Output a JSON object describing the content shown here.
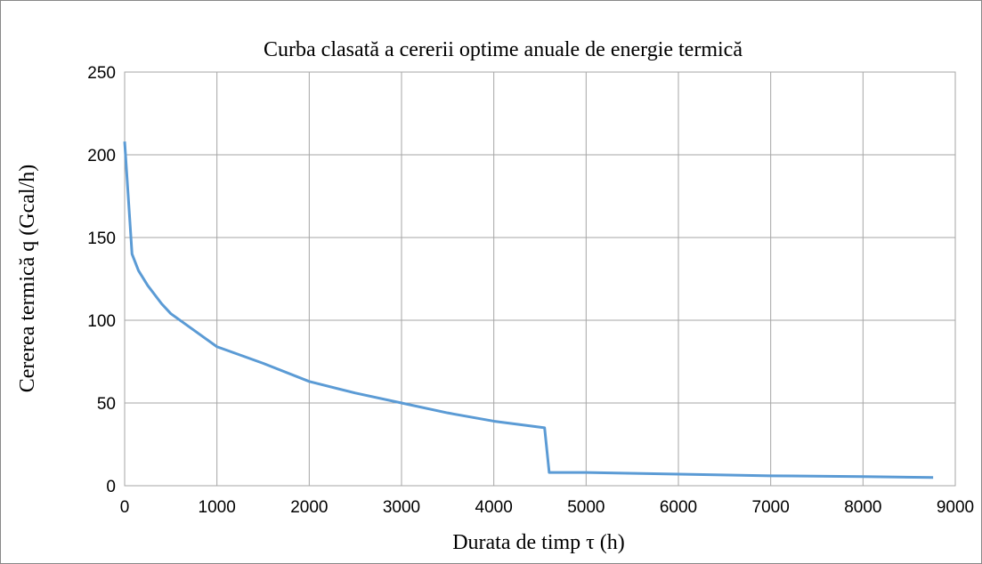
{
  "chart_data": {
    "type": "line",
    "title": "Curba clasată a cererii optime anuale de energie termică",
    "xlabel": "Durata de timp τ (h)",
    "ylabel": "Cererea termică q (Gcal/h)",
    "x": [
      0,
      80,
      150,
      250,
      400,
      500,
      700,
      1000,
      1500,
      2000,
      2500,
      3000,
      3500,
      4000,
      4550,
      4600,
      5000,
      6000,
      7000,
      8000,
      8760
    ],
    "series": [
      {
        "name": "q",
        "color": "#5b9bd5",
        "values": [
          208,
          140,
          130,
          121,
          110,
          104,
          96,
          84,
          74,
          63,
          56,
          50,
          44,
          39,
          35,
          8,
          8,
          7,
          6,
          5.5,
          5
        ]
      }
    ],
    "xlim": [
      0,
      9000
    ],
    "xticks": [
      0,
      1000,
      2000,
      3000,
      4000,
      5000,
      6000,
      7000,
      8000,
      9000
    ],
    "ylim": [
      0,
      250
    ],
    "yticks": [
      0,
      50,
      100,
      150,
      200,
      250
    ],
    "grid": true
  }
}
